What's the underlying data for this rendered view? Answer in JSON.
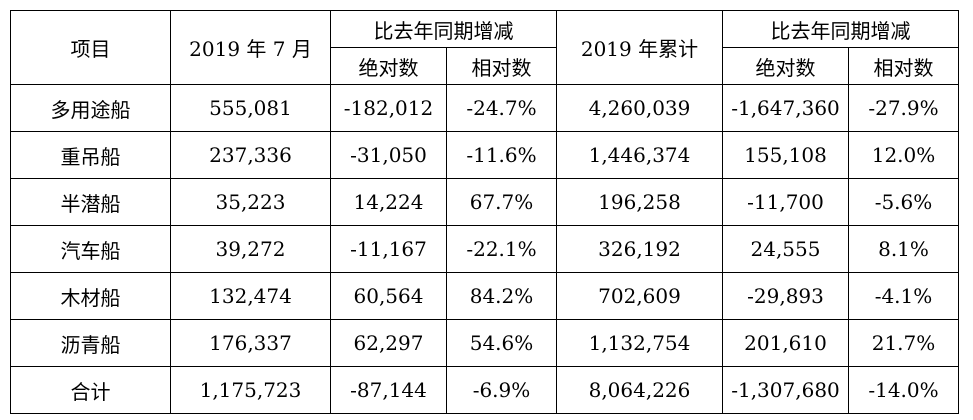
{
  "headers": {
    "item": "项目",
    "july": "2019 年 7 月",
    "yoy1": "比去年同期增减",
    "cumulative": "2019 年累计",
    "yoy2": "比去年同期增减",
    "abs1": "绝对数",
    "rel1": "相对数",
    "abs2": "绝对数",
    "rel2": "相对数"
  },
  "rows": [
    {
      "name": "多用途船",
      "july": "555,081",
      "abs1": "-182,012",
      "rel1": "-24.7%",
      "cum": "4,260,039",
      "abs2": "-1,647,360",
      "rel2": "-27.9%"
    },
    {
      "name": "重吊船",
      "july": "237,336",
      "abs1": "-31,050",
      "rel1": "-11.6%",
      "cum": "1,446,374",
      "abs2": "155,108",
      "rel2": "12.0%"
    },
    {
      "name": "半潜船",
      "july": "35,223",
      "abs1": "14,224",
      "rel1": "67.7%",
      "cum": "196,258",
      "abs2": "-11,700",
      "rel2": "-5.6%"
    },
    {
      "name": "汽车船",
      "july": "39,272",
      "abs1": "-11,167",
      "rel1": "-22.1%",
      "cum": "326,192",
      "abs2": "24,555",
      "rel2": "8.1%"
    },
    {
      "name": "木材船",
      "july": "132,474",
      "abs1": "60,564",
      "rel1": "84.2%",
      "cum": "702,609",
      "abs2": "-29,893",
      "rel2": "-4.1%"
    },
    {
      "name": "沥青船",
      "july": "176,337",
      "abs1": "62,297",
      "rel1": "54.6%",
      "cum": "1,132,754",
      "abs2": "201,610",
      "rel2": "21.7%"
    },
    {
      "name": "合计",
      "july": "1,175,723",
      "abs1": "-87,144",
      "rel1": "-6.9%",
      "cum": "8,064,226",
      "abs2": "-1,307,680",
      "rel2": "-14.0%"
    }
  ]
}
